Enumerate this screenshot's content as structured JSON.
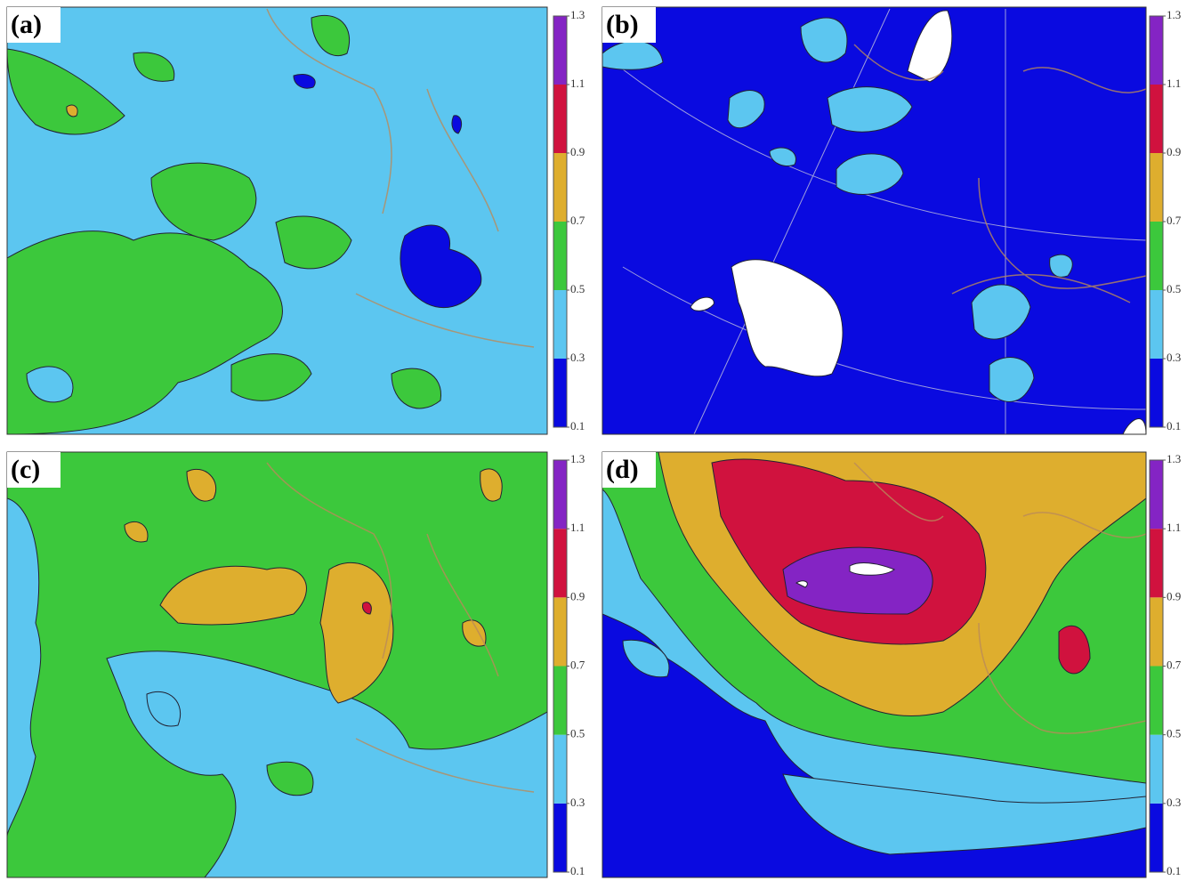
{
  "panels": [
    {
      "label": "(a)"
    },
    {
      "label": "(b)"
    },
    {
      "label": "(c)"
    },
    {
      "label": "(d)"
    }
  ],
  "colorbar": {
    "ticks": [
      0.1,
      0.3,
      0.5,
      0.7,
      0.9,
      1.1,
      1.3
    ],
    "colors": [
      "#0a0ae0",
      "#5cc6f0",
      "#3cc83c",
      "#deae2e",
      "#d0123e",
      "#8424c4"
    ]
  }
}
